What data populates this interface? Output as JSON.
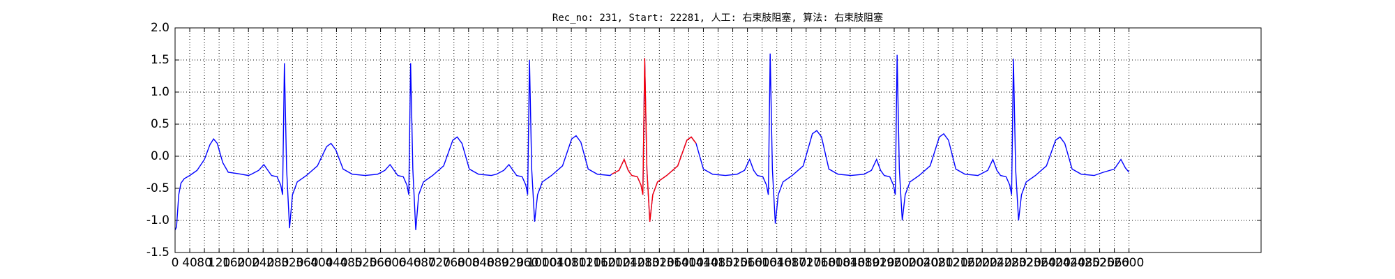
{
  "chart_data": {
    "type": "line",
    "title": "Rec_no: 231, Start: 22281, 人工: 右束肢阻塞, 算法: 右束肢阻塞",
    "xlim": [
      0,
      2960
    ],
    "xticks": [
      0,
      40,
      80,
      120,
      160,
      200,
      240,
      280,
      320,
      360,
      400,
      440,
      480,
      520,
      560,
      600,
      640,
      680,
      720,
      760,
      800,
      840,
      880,
      920,
      960,
      1000,
      1040,
      1080,
      1120,
      1160,
      1200,
      1240,
      1280,
      1320,
      1360,
      1400,
      1440,
      1480,
      1520,
      1560,
      1600,
      1640,
      1680,
      1720,
      1760,
      1800,
      1840,
      1880,
      1920,
      1960,
      2000,
      2040,
      2080,
      2120,
      2160,
      2200,
      2240,
      2280,
      2320,
      2360,
      2400,
      2440,
      2480,
      2520,
      2560,
      2600
    ],
    "ylim": [
      -1.5,
      2.0
    ],
    "yticks": [
      {
        "value": -1.5,
        "label": "-1.5"
      },
      {
        "value": -1,
        "label": "-1.0"
      },
      -0.5,
      {
        "value": 0,
        "label": "0.0"
      },
      0.5,
      {
        "value": 1,
        "label": "1.0"
      },
      1.5,
      {
        "value": 2,
        "label": "2.0"
      }
    ],
    "grid": true,
    "series": [
      {
        "color": "#0000ff",
        "x": [
          0,
          4,
          10,
          16,
          25,
          40,
          60,
          80,
          95,
          105,
          115,
          130,
          145,
          170,
          200,
          208,
          228,
          242,
          253,
          263,
          278,
          288,
          293,
          298,
          304,
          312,
          320,
          333,
          358,
          388,
          413,
          425,
          438,
          458,
          483,
          518,
          552,
          572,
          586,
          597,
          607,
          622,
          632,
          637,
          642,
          648,
          656,
          664,
          677,
          702,
          732,
          757,
          769,
          782,
          802,
          827,
          862,
          876,
          896,
          910,
          921,
          931,
          946,
          956,
          961,
          966,
          972,
          980,
          988,
          1001,
          1026,
          1056,
          1081,
          1093,
          1106,
          1126,
          1151,
          1186,
          1190,
          1210,
          1224,
          1235,
          1245,
          1260,
          1270,
          1275,
          1280,
          1286,
          1294,
          1302,
          1315,
          1340,
          1370,
          1395,
          1407,
          1420,
          1440,
          1465,
          1500,
          1532,
          1552,
          1566,
          1577,
          1587,
          1602,
          1612,
          1617,
          1622,
          1628,
          1636,
          1644,
          1657,
          1682,
          1712,
          1737,
          1749,
          1762,
          1782,
          1807,
          1842,
          1878,
          1898,
          1912,
          1923,
          1933,
          1948,
          1958,
          1963,
          1968,
          1974,
          1982,
          1990,
          2003,
          2028,
          2058,
          2083,
          2095,
          2108,
          2128,
          2153,
          2188,
          2195,
          2215,
          2229,
          2240,
          2250,
          2265,
          2275,
          2280,
          2285,
          2291,
          2299,
          2307,
          2320,
          2345,
          2375,
          2400,
          2412,
          2425,
          2445,
          2470,
          2505,
          2530,
          2560,
          2578,
          2590,
          2600
        ],
        "values": [
          -1.15,
          -1.1,
          -0.6,
          -0.42,
          -0.35,
          -0.3,
          -0.22,
          -0.05,
          0.18,
          0.27,
          0.2,
          -0.1,
          -0.25,
          -0.27,
          -0.3,
          -0.28,
          -0.22,
          -0.13,
          -0.22,
          -0.3,
          -0.32,
          -0.45,
          -0.6,
          1.45,
          -0.2,
          -1.12,
          -0.6,
          -0.4,
          -0.3,
          -0.15,
          0.15,
          0.2,
          0.1,
          -0.2,
          -0.28,
          -0.3,
          -0.28,
          -0.22,
          -0.13,
          -0.22,
          -0.3,
          -0.32,
          -0.45,
          -0.6,
          1.45,
          -0.2,
          -1.15,
          -0.6,
          -0.4,
          -0.3,
          -0.15,
          0.25,
          0.3,
          0.2,
          -0.2,
          -0.28,
          -0.3,
          -0.28,
          -0.22,
          -0.13,
          -0.22,
          -0.3,
          -0.32,
          -0.45,
          -0.6,
          1.5,
          -0.2,
          -1.02,
          -0.6,
          -0.4,
          -0.3,
          -0.15,
          0.27,
          0.32,
          0.22,
          -0.2,
          -0.28,
          -0.3,
          -0.28,
          -0.22,
          -0.05,
          -0.22,
          -0.3,
          -0.32,
          -0.45,
          -0.6,
          1.53,
          -0.2,
          -1.02,
          -0.6,
          -0.4,
          -0.3,
          -0.15,
          0.25,
          0.3,
          0.2,
          -0.2,
          -0.28,
          -0.3,
          -0.28,
          -0.22,
          -0.05,
          -0.22,
          -0.3,
          -0.32,
          -0.45,
          -0.6,
          1.6,
          -0.2,
          -1.05,
          -0.6,
          -0.4,
          -0.3,
          -0.15,
          0.35,
          0.4,
          0.3,
          -0.2,
          -0.28,
          -0.3,
          -0.28,
          -0.22,
          -0.05,
          -0.22,
          -0.3,
          -0.32,
          -0.45,
          -0.6,
          1.58,
          -0.2,
          -1.0,
          -0.6,
          -0.4,
          -0.3,
          -0.15,
          0.3,
          0.35,
          0.25,
          -0.2,
          -0.28,
          -0.3,
          -0.28,
          -0.22,
          -0.05,
          -0.22,
          -0.3,
          -0.32,
          -0.45,
          -0.6,
          1.52,
          -0.2,
          -1.0,
          -0.6,
          -0.4,
          -0.3,
          -0.15,
          0.25,
          0.3,
          0.2,
          -0.2,
          -0.28,
          -0.3,
          -0.25,
          -0.2,
          -0.05,
          -0.18,
          -0.25
        ]
      },
      {
        "color": "#ff0000",
        "x": [
          1190,
          1210,
          1224,
          1235,
          1245,
          1260,
          1270,
          1275,
          1280,
          1286,
          1294,
          1302,
          1315,
          1340,
          1370,
          1395,
          1407,
          1420
        ],
        "values": [
          -0.28,
          -0.22,
          -0.05,
          -0.22,
          -0.3,
          -0.32,
          -0.45,
          -0.6,
          1.53,
          -0.2,
          -1.02,
          -0.6,
          -0.4,
          -0.3,
          -0.15,
          0.25,
          0.3,
          0.2
        ]
      }
    ]
  }
}
